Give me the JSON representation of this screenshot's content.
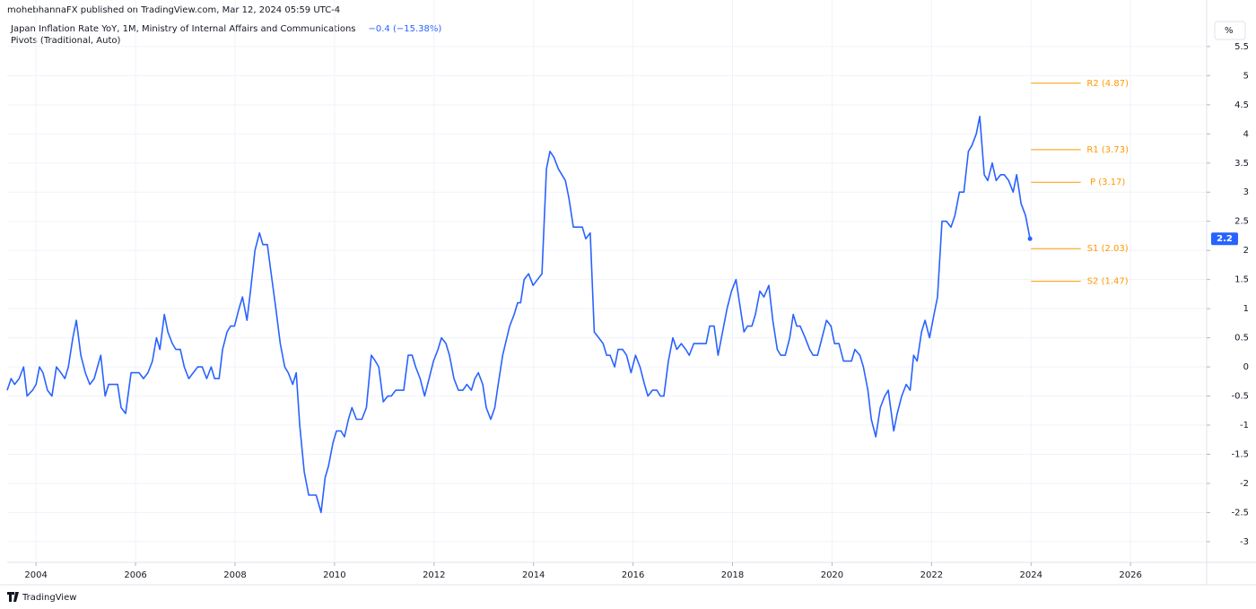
{
  "header": {
    "publisher": "mohebhannaFX published on TradingView.com, Mar 12, 2024 05:59 UTC-4",
    "change": "−0.4 (−15.38%)",
    "indicator": "Pivots (Traditional, Auto)",
    "unit": "%",
    "brand": "TradingView"
  },
  "chart_data": {
    "type": "line",
    "x": [
      2003.42,
      2003.5,
      2003.57,
      2003.66,
      2003.75,
      2003.82,
      2003.93,
      2004.0,
      2004.07,
      2004.14,
      2004.23,
      2004.32,
      2004.41,
      2004.5,
      2004.58,
      2004.65,
      2004.74,
      2004.81,
      2004.9,
      2004.99,
      2005.08,
      2005.17,
      2005.3,
      2005.39,
      2005.46,
      2005.64,
      2005.71,
      2005.8,
      2005.91,
      2006.07,
      2006.16,
      2006.25,
      2006.34,
      2006.42,
      2006.49,
      2006.58,
      2006.65,
      2006.74,
      2006.81,
      2006.9,
      2006.98,
      2007.07,
      2007.25,
      2007.34,
      2007.43,
      2007.52,
      2007.59,
      2007.68,
      2007.75,
      2007.84,
      2007.91,
      2007.99,
      2008.08,
      2008.15,
      2008.24,
      2008.31,
      2008.4,
      2008.49,
      2008.56,
      2008.65,
      2008.71,
      2008.82,
      2008.91,
      2009.0,
      2009.07,
      2009.16,
      2009.23,
      2009.3,
      2009.39,
      2009.48,
      2009.63,
      2009.73,
      2009.81,
      2009.88,
      2009.97,
      2010.04,
      2010.13,
      2010.2,
      2010.28,
      2010.35,
      2010.44,
      2010.55,
      2010.64,
      2010.74,
      2010.82,
      2010.89,
      2010.98,
      2011.07,
      2011.14,
      2011.23,
      2011.39,
      2011.48,
      2011.56,
      2011.63,
      2011.72,
      2011.81,
      2011.9,
      2011.99,
      2012.08,
      2012.15,
      2012.24,
      2012.31,
      2012.4,
      2012.49,
      2012.58,
      2012.66,
      2012.75,
      2012.82,
      2012.89,
      2012.98,
      2013.05,
      2013.14,
      2013.22,
      2013.29,
      2013.38,
      2013.52,
      2013.61,
      2013.68,
      2013.74,
      2013.81,
      2013.9,
      2013.99,
      2014.08,
      2014.17,
      2014.26,
      2014.33,
      2014.41,
      2014.5,
      2014.57,
      2014.64,
      2014.71,
      2014.8,
      2014.89,
      2014.98,
      2015.05,
      2015.14,
      2015.22,
      2015.31,
      2015.4,
      2015.47,
      2015.54,
      2015.63,
      2015.7,
      2015.79,
      2015.87,
      2015.96,
      2016.05,
      2016.14,
      2016.23,
      2016.3,
      2016.39,
      2016.48,
      2016.55,
      2016.62,
      2016.71,
      2016.8,
      2016.88,
      2016.97,
      2017.06,
      2017.13,
      2017.22,
      2017.31,
      2017.38,
      2017.47,
      2017.54,
      2017.63,
      2017.71,
      2017.8,
      2017.89,
      2017.98,
      2018.07,
      2018.14,
      2018.23,
      2018.3,
      2018.39,
      2018.46,
      2018.55,
      2018.63,
      2018.73,
      2018.81,
      2018.9,
      2018.97,
      2019.06,
      2019.15,
      2019.22,
      2019.29,
      2019.36,
      2019.46,
      2019.55,
      2019.62,
      2019.71,
      2019.8,
      2019.89,
      2019.98,
      2020.05,
      2020.14,
      2020.23,
      2020.32,
      2020.39,
      2020.46,
      2020.56,
      2020.63,
      2020.72,
      2020.79,
      2020.88,
      2020.97,
      2021.06,
      2021.13,
      2021.24,
      2021.31,
      2021.4,
      2021.49,
      2021.57,
      2021.64,
      2021.71,
      2021.8,
      2021.87,
      2021.96,
      2022.05,
      2022.12,
      2022.21,
      2022.3,
      2022.39,
      2022.47,
      2022.56,
      2022.65,
      2022.74,
      2022.81,
      2022.9,
      2022.97,
      2023.06,
      2023.13,
      2023.22,
      2023.3,
      2023.39,
      2023.46,
      2023.55,
      2023.64,
      2023.71,
      2023.8,
      2023.89,
      2023.98
    ],
    "series": [
      {
        "name": "Japan Inflation Rate YoY, 1M, Ministry of Internal Affairs and Communications",
        "color": "#2962ff",
        "values": [
          -0.4,
          -0.2,
          -0.3,
          -0.2,
          0,
          -0.5,
          -0.4,
          -0.3,
          0,
          -0.1,
          -0.4,
          -0.5,
          0,
          -0.1,
          -0.2,
          0,
          0.5,
          0.8,
          0.2,
          -0.1,
          -0.3,
          -0.2,
          0.2,
          -0.5,
          -0.3,
          -0.3,
          -0.7,
          -0.8,
          -0.1,
          -0.1,
          -0.2,
          -0.1,
          0.1,
          0.5,
          0.3,
          0.9,
          0.6,
          0.4,
          0.3,
          0.3,
          0,
          -0.2,
          0,
          0,
          -0.2,
          0,
          -0.2,
          -0.2,
          0.3,
          0.6,
          0.7,
          0.7,
          1.0,
          1.2,
          0.8,
          1.3,
          2.0,
          2.3,
          2.1,
          2.1,
          1.7,
          1.0,
          0.4,
          0,
          -0.1,
          -0.3,
          -0.1,
          -1.0,
          -1.8,
          -2.2,
          -2.2,
          -2.5,
          -1.9,
          -1.7,
          -1.3,
          -1.1,
          -1.1,
          -1.2,
          -0.9,
          -0.7,
          -0.9,
          -0.9,
          -0.7,
          0.2,
          0.1,
          0,
          -0.6,
          -0.5,
          -0.5,
          -0.4,
          -0.4,
          0.2,
          0.2,
          0,
          -0.2,
          -0.5,
          -0.2,
          0.1,
          0.3,
          0.5,
          0.4,
          0.2,
          -0.2,
          -0.4,
          -0.4,
          -0.3,
          -0.4,
          -0.2,
          -0.1,
          -0.3,
          -0.7,
          -0.9,
          -0.7,
          -0.3,
          0.2,
          0.7,
          0.9,
          1.1,
          1.1,
          1.5,
          1.6,
          1.4,
          1.5,
          1.6,
          3.4,
          3.7,
          3.6,
          3.4,
          3.3,
          3.2,
          2.9,
          2.4,
          2.4,
          2.4,
          2.2,
          2.3,
          0.6,
          0.5,
          0.4,
          0.2,
          0.2,
          0,
          0.3,
          0.3,
          0.2,
          -0.1,
          0.2,
          0,
          -0.3,
          -0.5,
          -0.4,
          -0.4,
          -0.5,
          -0.5,
          0.1,
          0.5,
          0.3,
          0.4,
          0.3,
          0.2,
          0.4,
          0.4,
          0.4,
          0.4,
          0.7,
          0.7,
          0.2,
          0.6,
          1.0,
          1.3,
          1.5,
          1.1,
          0.6,
          0.7,
          0.7,
          0.9,
          1.3,
          1.2,
          1.4,
          0.8,
          0.3,
          0.2,
          0.2,
          0.5,
          0.9,
          0.7,
          0.7,
          0.5,
          0.3,
          0.2,
          0.2,
          0.5,
          0.8,
          0.7,
          0.4,
          0.4,
          0.1,
          0.1,
          0.1,
          0.3,
          0.2,
          0,
          -0.4,
          -0.9,
          -1.2,
          -0.7,
          -0.5,
          -0.4,
          -1.1,
          -0.8,
          -0.5,
          -0.3,
          -0.4,
          0.2,
          0.1,
          0.6,
          0.8,
          0.5,
          0.9,
          1.2,
          2.5,
          2.5,
          2.4,
          2.6,
          3.0,
          3.0,
          3.7,
          3.8,
          4.0,
          4.3,
          3.3,
          3.2,
          3.5,
          3.2,
          3.3,
          3.3,
          3.2,
          3.0,
          3.3,
          2.8,
          2.6,
          2.2
        ]
      }
    ],
    "xlim": [
      2003.42,
      2027.53
    ],
    "xticks": [
      2004,
      2006,
      2008,
      2010,
      2012,
      2014,
      2016,
      2018,
      2020,
      2022,
      2024,
      2026
    ],
    "ylim": [
      -3.34,
      5.96
    ],
    "yticks": [
      -3,
      -2.5,
      -2,
      -1.5,
      -1,
      -0.5,
      0,
      0.5,
      1,
      1.5,
      2,
      2.5,
      3,
      3.5,
      4,
      4.5,
      5,
      5.5
    ],
    "grid": true,
    "pivots": {
      "color": "#ff9800",
      "xlim": [
        2024,
        2025
      ],
      "levels": [
        {
          "value": 4.87,
          "label": "R2 (4.87)"
        },
        {
          "value": 3.73,
          "label": "R1 (3.73)"
        },
        {
          "value": 3.17,
          "label": "P (3.17)"
        },
        {
          "value": 2.03,
          "label": "S1 (2.03)"
        },
        {
          "value": 1.47,
          "label": "S2 (1.47)"
        }
      ]
    }
  }
}
